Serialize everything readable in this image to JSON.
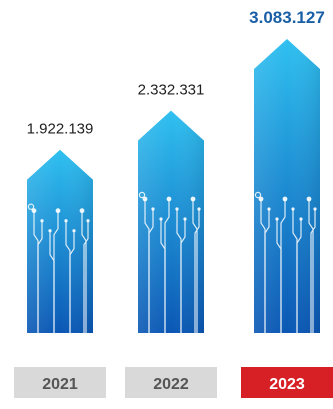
{
  "chart_data": {
    "type": "bar",
    "categories": [
      "2021",
      "2022",
      "2023"
    ],
    "values": [
      1922139,
      2332331,
      3083127
    ],
    "value_labels": [
      "1.922.139",
      "2.332.331",
      "3.083.127"
    ],
    "highlight_index": 2,
    "colors": {
      "bar_top": "#2fc0f0",
      "bar_bottom": "#0a57b4",
      "highlight_tab": "#d71f26",
      "tab": "#d9d9d9",
      "highlight_value": "#1a5fa6"
    }
  }
}
